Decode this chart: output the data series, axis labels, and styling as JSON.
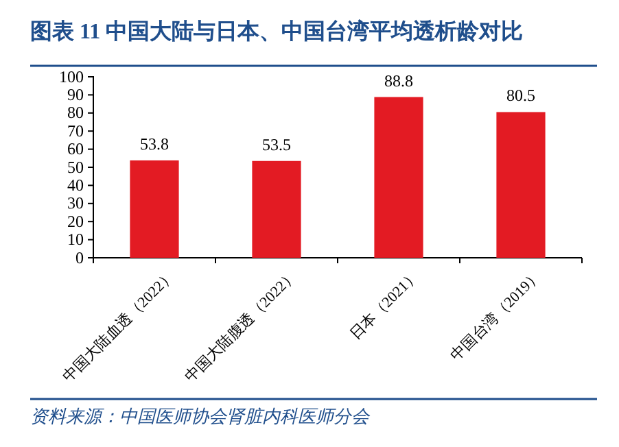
{
  "chart_data": {
    "type": "bar",
    "title": "图表 11 中国大陆与日本、中国台湾平均透析龄对比",
    "categories": [
      "中国大陆血透（2022）",
      "中国大陆腹透（2022）",
      "日本（2021）",
      "中国台湾（2019）"
    ],
    "values": [
      53.8,
      53.5,
      88.8,
      80.5
    ],
    "color": "#e31b23",
    "data_labels": true,
    "ylim": [
      0,
      100
    ],
    "yticks": [
      0,
      10,
      20,
      30,
      40,
      50,
      60,
      70,
      80,
      90,
      100
    ],
    "annotations": [
      "资料来源：中国医师协会肾脏内科医师分会"
    ]
  }
}
